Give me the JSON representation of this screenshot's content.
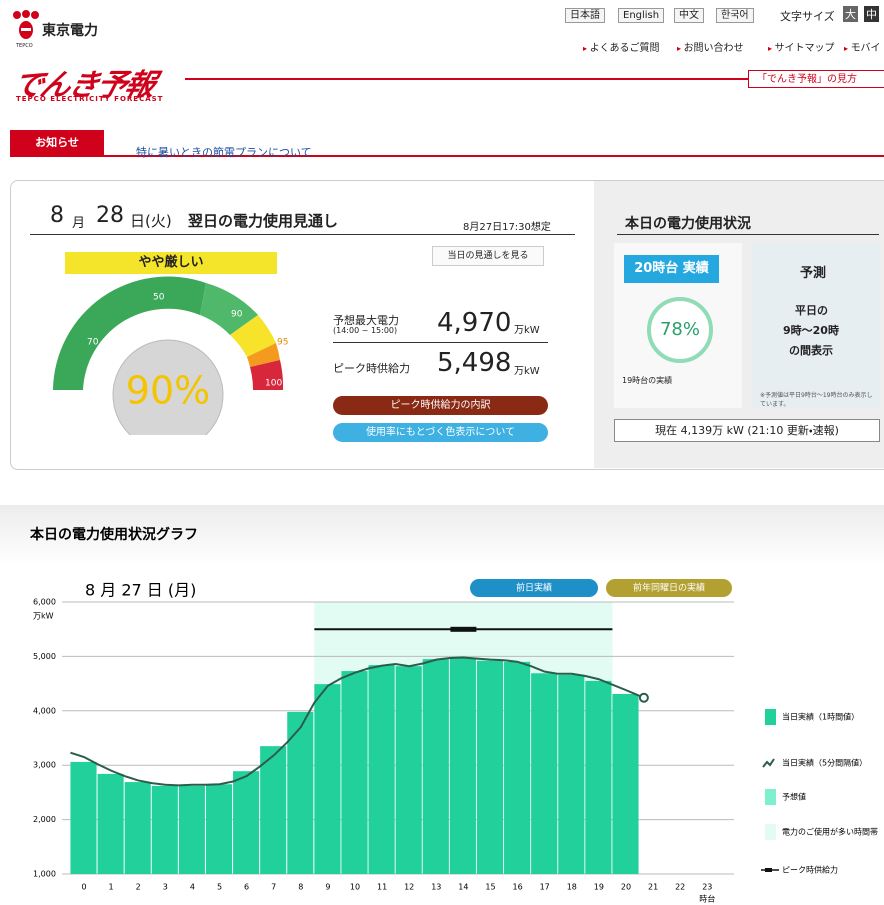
{
  "header": {
    "logo_text": "東京電力",
    "logo_sub": "TEPCO",
    "languages": [
      "日本語",
      "English",
      "中文",
      "한국어"
    ],
    "font_size_label": "文字サイズ",
    "font_sizes": [
      "大",
      "中"
    ],
    "links": [
      "よくあるご質問",
      "お問い合わせ",
      "サイトマップ",
      "モバイ"
    ],
    "brand": "でんき予報",
    "brand_sub": "TEPCO ELECTRICITY FORECAST",
    "guide_link": "「でんき予報」の見方"
  },
  "notice": {
    "label": "お知らせ",
    "link": "特に暑いときの節電プランについて"
  },
  "forecast": {
    "month": "8",
    "month_unit": "月",
    "day": "28",
    "day_unit": "日(火)",
    "title": "翌日の電力使用見通し",
    "assumed": "8月27日17:30想定",
    "status": "やや厳しい",
    "today_button": "当日の見通しを見る",
    "gauge_ticks": [
      "50",
      "70",
      "90",
      "95",
      "100"
    ],
    "gauge_value": "90%",
    "max_label": "予想最大電力",
    "max_time": "(14:00 ~ 15:00)",
    "max_value": "4,970",
    "max_unit": "万kW",
    "supply_label": "ピーク時供給力",
    "supply_value": "5,498",
    "supply_unit": "万kW",
    "buttons": [
      "ピーク時供給力の内訳",
      "使用率にもとづく色表示について"
    ]
  },
  "today": {
    "title": "本日の電力使用状況",
    "actual_label": "20時台 実績",
    "actual_rate": "78%",
    "actual_note": "19時台の実績",
    "forecast_label": "予測",
    "forecast_text": [
      "平日の",
      "9時～20時",
      "の間表示"
    ],
    "forecast_note": "※予測値は平日9時台～19時台のみ表示しています。",
    "current": "現在 4,139万 kW (21:10 更新・速報)"
  },
  "chart_data": {
    "type": "bar",
    "title": "本日の電力使用状況グラフ",
    "subtitle": "8 月 27 日 (月)",
    "buttons": [
      "前日実績",
      "前年同曜日の実績"
    ],
    "y_label": "万kW",
    "x_label": "時台",
    "categories": [
      "0",
      "1",
      "2",
      "3",
      "4",
      "5",
      "6",
      "7",
      "8",
      "9",
      "10",
      "11",
      "12",
      "13",
      "14",
      "15",
      "16",
      "17",
      "18",
      "19",
      "20",
      "21",
      "22",
      "23"
    ],
    "ylim": [
      1000,
      6000
    ],
    "yticks": [
      {
        "value": 1000,
        "label": "1,000"
      },
      {
        "value": 2000,
        "label": "2,000"
      },
      {
        "value": 3000,
        "label": "3,000"
      },
      {
        "value": 4000,
        "label": "4,000"
      },
      {
        "value": 5000,
        "label": "5,000"
      },
      {
        "value": 6000,
        "label": "6,000"
      }
    ],
    "grid": true,
    "legend": "right",
    "series": [
      {
        "name": "当日実績（1時間値）",
        "color": "#22d09c",
        "values": [
          3060,
          2840,
          2690,
          2620,
          2620,
          2650,
          2890,
          3350,
          3980,
          4490,
          4730,
          4840,
          4820,
          4950,
          4970,
          4920,
          4900,
          4690,
          4660,
          4550,
          4310,
          null,
          null,
          null
        ]
      },
      {
        "name": "当日実績（5分間隔値）",
        "type": "line",
        "color": "#2b5e4a",
        "x": [
          -0.5,
          0,
          0.5,
          1,
          1.5,
          2,
          2.5,
          3,
          3.5,
          4,
          4.5,
          5,
          5.5,
          6,
          6.5,
          7,
          7.5,
          8,
          8.5,
          9,
          9.5,
          10,
          10.5,
          11,
          11.5,
          12,
          12.5,
          13,
          13.5,
          14,
          14.5,
          15,
          15.5,
          16,
          16.5,
          17,
          17.5,
          18,
          18.5,
          19,
          19.5,
          20,
          20.66
        ],
        "values": [
          3230,
          3150,
          3020,
          2900,
          2800,
          2720,
          2670,
          2640,
          2630,
          2640,
          2640,
          2650,
          2700,
          2800,
          2980,
          3180,
          3420,
          3700,
          4150,
          4460,
          4600,
          4700,
          4780,
          4830,
          4860,
          4820,
          4870,
          4940,
          4970,
          4980,
          4960,
          4940,
          4930,
          4900,
          4820,
          4720,
          4680,
          4680,
          4640,
          4580,
          4480,
          4380,
          4240
        ]
      },
      {
        "name": "予想値",
        "color": "#7ff0cf",
        "values": [
          null,
          null,
          null,
          null,
          null,
          null,
          null,
          null,
          null,
          null,
          null,
          null,
          null,
          null,
          null,
          null,
          null,
          null,
          null,
          null,
          null,
          null,
          null,
          null
        ]
      }
    ],
    "high_demand": {
      "name": "電力のご使用が多い時間帯",
      "color": "#e2fbf3",
      "x": [
        8.5,
        19.5
      ]
    },
    "peak_supply": {
      "name": "ピーク時供給力",
      "color": "#111111",
      "x": [
        8.5,
        19.5
      ],
      "value": 5498,
      "peak_x": 14
    }
  }
}
